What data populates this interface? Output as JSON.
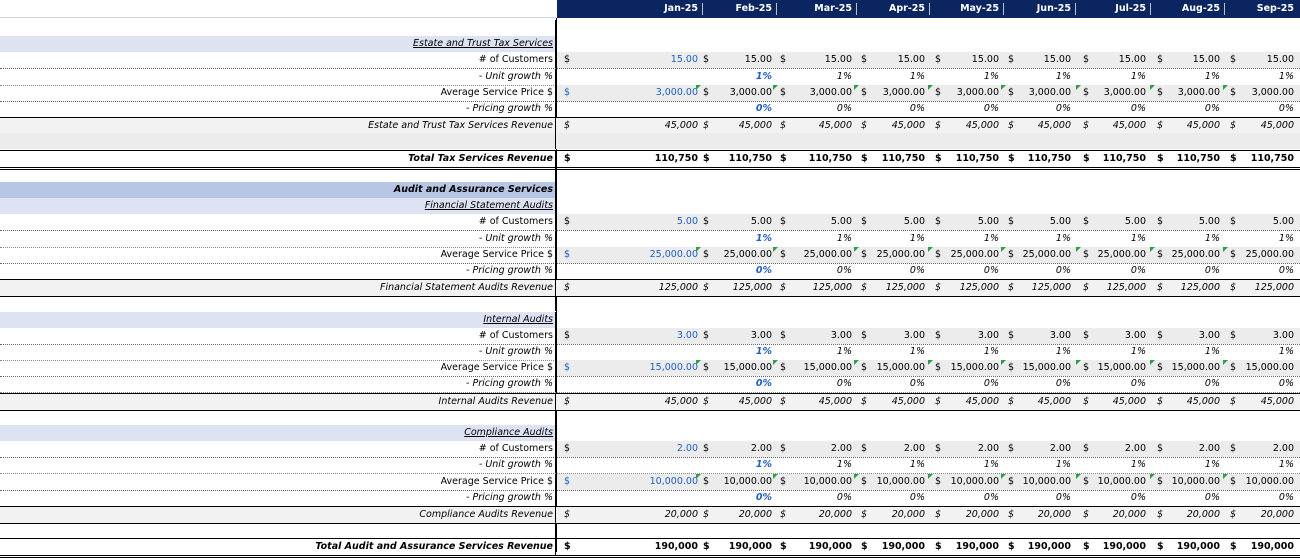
{
  "months": [
    "Jan-25",
    "Feb-25",
    "Mar-25",
    "Apr-25",
    "May-25",
    "Jun-25",
    "Jul-25",
    "Aug-25",
    "Sep-25"
  ],
  "currency": "$",
  "colors": {
    "header_bg": "#0b2560",
    "section_bg": "#b8c6e6",
    "subsection_bg": "#dde3f3",
    "input_bg": "#ececec",
    "input_text": "#1f5fbf",
    "indicator": "#2f9e44"
  },
  "rows": [
    {
      "type": "blank"
    },
    {
      "type": "sub",
      "label": "Estate and Trust Tax Services"
    },
    {
      "type": "count",
      "label": "# of Customers",
      "first": "15.00",
      "rest": "15.00",
      "fill": true
    },
    {
      "type": "growth",
      "label": "- Unit growth %",
      "first": "",
      "second": "1%",
      "rest": "1%"
    },
    {
      "type": "price",
      "label": "Average Service Price $",
      "first": "3,000.00",
      "rest": "3,000.00",
      "fill": true
    },
    {
      "type": "growth",
      "label": "- Pricing growth %",
      "first": "",
      "second": "0%",
      "rest": "0%"
    },
    {
      "type": "revenue",
      "label": "Estate and Trust Tax Services Revenue",
      "first": "45,000",
      "rest": "45,000"
    },
    {
      "type": "blank",
      "shade": true
    },
    {
      "type": "total",
      "label": "Total Tax Services Revenue",
      "first": "110,750",
      "rest": "110,750"
    },
    {
      "type": "blank"
    },
    {
      "type": "section",
      "label": "Audit and Assurance Services"
    },
    {
      "type": "sub",
      "label": "Financial Statement Audits"
    },
    {
      "type": "count",
      "label": "# of Customers",
      "first": "5.00",
      "rest": "5.00",
      "fill": true
    },
    {
      "type": "growth",
      "label": "- Unit growth %",
      "first": "",
      "second": "1%",
      "rest": "1%"
    },
    {
      "type": "price",
      "label": "Average Service Price $",
      "first": "25,000.00",
      "rest": "25,000.00",
      "fill": true
    },
    {
      "type": "growth",
      "label": "- Pricing growth %",
      "first": "",
      "second": "0%",
      "rest": "0%"
    },
    {
      "type": "revenue",
      "label": "Financial Statement Audits Revenue",
      "first": "125,000",
      "rest": "125,000"
    },
    {
      "type": "blank"
    },
    {
      "type": "sub",
      "label": "Internal Audits"
    },
    {
      "type": "count",
      "label": "# of Customers",
      "first": "3.00",
      "rest": "3.00",
      "fill": true
    },
    {
      "type": "growth",
      "label": "- Unit growth %",
      "first": "",
      "second": "1%",
      "rest": "1%"
    },
    {
      "type": "price",
      "label": "Average Service Price $",
      "first": "15,000.00",
      "rest": "15,000.00",
      "fill": true
    },
    {
      "type": "growth",
      "label": "- Pricing growth %",
      "first": "",
      "second": "0%",
      "rest": "0%"
    },
    {
      "type": "revenue",
      "label": "Internal Audits Revenue",
      "first": "45,000",
      "rest": "45,000"
    },
    {
      "type": "blank"
    },
    {
      "type": "sub",
      "label": "Compliance Audits"
    },
    {
      "type": "count",
      "label": "# of Customers",
      "first": "2.00",
      "rest": "2.00",
      "fill": true
    },
    {
      "type": "growth",
      "label": "- Unit growth %",
      "first": "",
      "second": "1%",
      "rest": "1%"
    },
    {
      "type": "price",
      "label": "Average Service Price $",
      "first": "10,000.00",
      "rest": "10,000.00",
      "fill": true
    },
    {
      "type": "growth",
      "label": "- Pricing growth %",
      "first": "",
      "second": "0%",
      "rest": "0%"
    },
    {
      "type": "revenue",
      "label": "Compliance Audits Revenue",
      "first": "20,000",
      "rest": "20,000"
    },
    {
      "type": "blank"
    },
    {
      "type": "total",
      "label": "Total Audit and Assurance Services Revenue",
      "first": "190,000",
      "rest": "190,000"
    }
  ]
}
